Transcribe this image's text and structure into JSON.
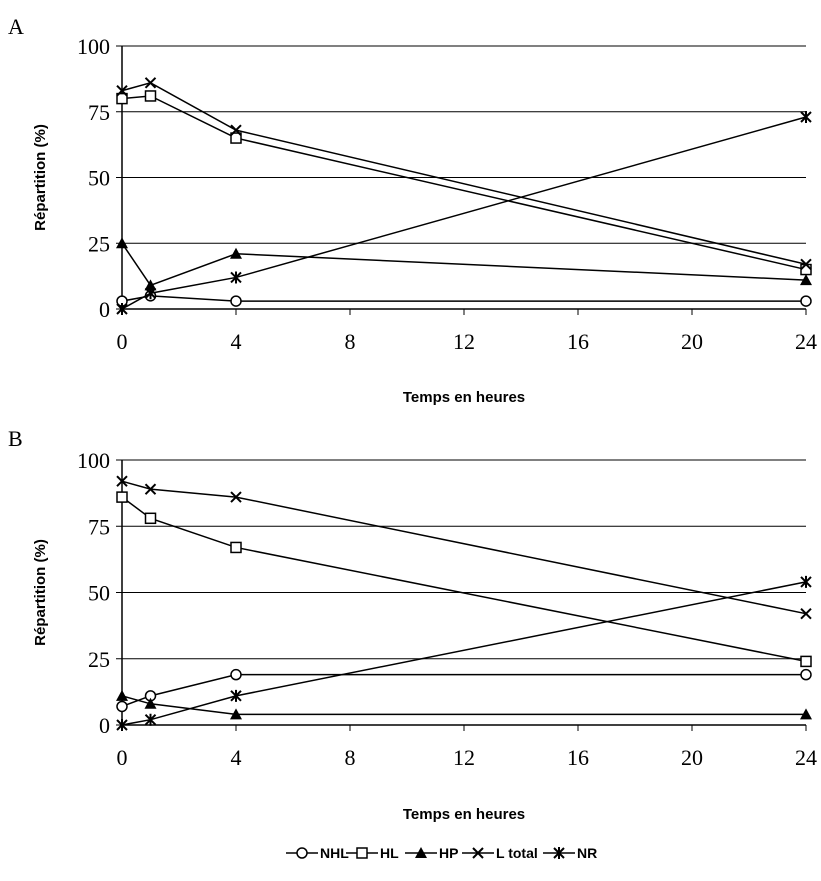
{
  "chart_data": [
    {
      "type": "line",
      "panel": "A",
      "xlabel": "Temps en heures",
      "ylabel": "Répartition (%)",
      "xlim": [
        0,
        24
      ],
      "ylim": [
        0,
        100
      ],
      "xticks": [
        "0",
        "4",
        "8",
        "12",
        "16",
        "20",
        "24"
      ],
      "yticks": [
        "0",
        "25",
        "50",
        "75",
        "100"
      ],
      "grid": "horizontal",
      "x": [
        0,
        1,
        4,
        24
      ],
      "series": [
        {
          "name": "NHL",
          "marker": "circle",
          "values": [
            3,
            5,
            3,
            3
          ]
        },
        {
          "name": "HL",
          "marker": "square",
          "values": [
            80,
            81,
            65,
            15
          ]
        },
        {
          "name": "HP",
          "marker": "triangle",
          "values": [
            25,
            9,
            21,
            11
          ]
        },
        {
          "name": "L total",
          "marker": "x",
          "values": [
            83,
            86,
            68,
            17
          ]
        },
        {
          "name": "NR",
          "marker": "star",
          "values": [
            0,
            6,
            12,
            73
          ]
        }
      ]
    },
    {
      "type": "line",
      "panel": "B",
      "xlabel": "Temps en heures",
      "ylabel": "Répartition (%)",
      "xlim": [
        0,
        24
      ],
      "ylim": [
        0,
        100
      ],
      "xticks": [
        "0",
        "4",
        "8",
        "12",
        "16",
        "20",
        "24"
      ],
      "yticks": [
        "0",
        "25",
        "50",
        "75",
        "100"
      ],
      "grid": "horizontal",
      "x": [
        0,
        1,
        4,
        24
      ],
      "series": [
        {
          "name": "NHL",
          "marker": "circle",
          "values": [
            7,
            11,
            19,
            19
          ]
        },
        {
          "name": "HL",
          "marker": "square",
          "values": [
            86,
            78,
            67,
            24
          ]
        },
        {
          "name": "HP",
          "marker": "triangle",
          "values": [
            11,
            8,
            4,
            4
          ]
        },
        {
          "name": "L total",
          "marker": "x",
          "values": [
            92,
            89,
            86,
            42
          ]
        },
        {
          "name": "NR",
          "marker": "star",
          "values": [
            0,
            2,
            11,
            54
          ]
        }
      ]
    }
  ],
  "legend": {
    "placement": "bottom",
    "entries": [
      {
        "name": "NHL",
        "marker": "circle"
      },
      {
        "name": "HL",
        "marker": "square"
      },
      {
        "name": "HP",
        "marker": "triangle"
      },
      {
        "name": "L total",
        "marker": "x"
      },
      {
        "name": "NR",
        "marker": "star"
      }
    ]
  },
  "colors": {
    "line": "#000000",
    "grid": "#000000",
    "background": "#ffffff"
  }
}
